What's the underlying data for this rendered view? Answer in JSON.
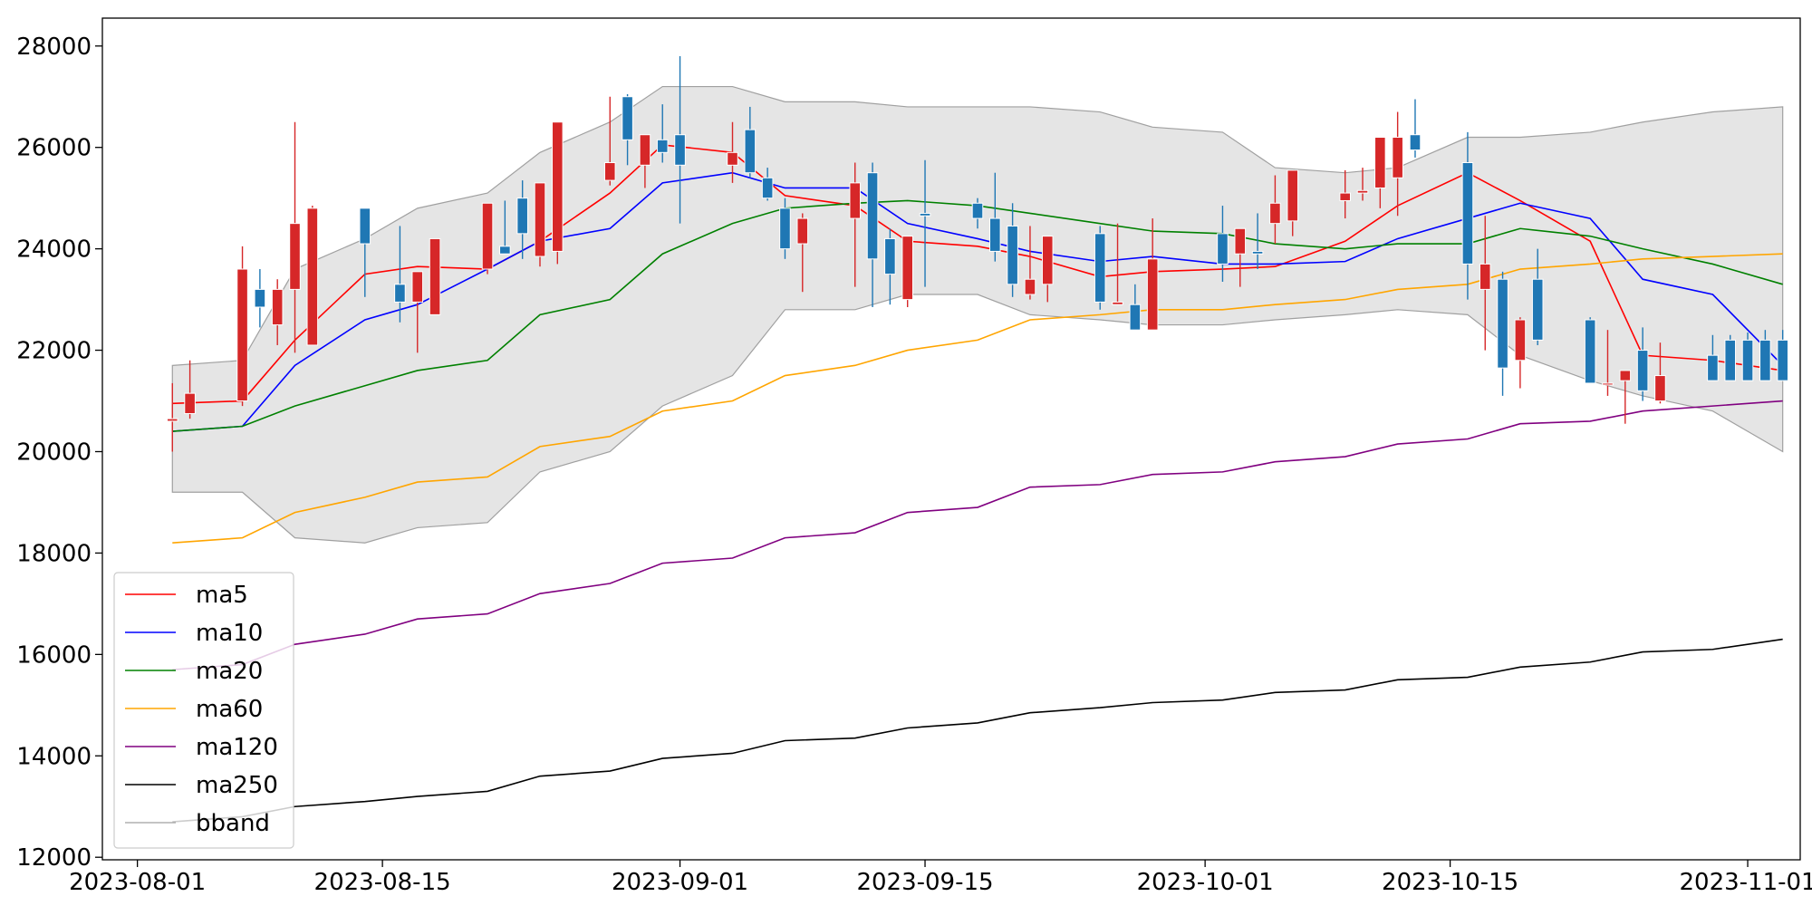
{
  "chart_data": {
    "type": "candlestick",
    "title": "",
    "xlabel": "",
    "ylabel": "",
    "xlim": [
      "2023-07-30",
      "2023-11-04"
    ],
    "ylim": [
      11950,
      28550
    ],
    "grid": false,
    "legend_position": "lower-left",
    "x_ticks": [
      "2023-08-01",
      "2023-08-15",
      "2023-09-01",
      "2023-09-15",
      "2023-10-01",
      "2023-10-15",
      "2023-11-01"
    ],
    "y_ticks": [
      12000,
      14000,
      16000,
      18000,
      20000,
      22000,
      24000,
      26000,
      28000
    ],
    "colors": {
      "up": "#d62728",
      "down": "#1f77b4",
      "band_fill": "#e5e5e5",
      "band_edge": "#a0a0a0"
    },
    "candles": {
      "x": [
        "2023-08-03",
        "2023-08-04",
        "2023-08-07",
        "2023-08-08",
        "2023-08-09",
        "2023-08-10",
        "2023-08-11",
        "2023-08-14",
        "2023-08-16",
        "2023-08-17",
        "2023-08-18",
        "2023-08-21",
        "2023-08-22",
        "2023-08-23",
        "2023-08-24",
        "2023-08-25",
        "2023-08-28",
        "2023-08-29",
        "2023-08-30",
        "2023-08-31",
        "2023-09-01",
        "2023-09-04",
        "2023-09-05",
        "2023-09-06",
        "2023-09-07",
        "2023-09-08",
        "2023-09-11",
        "2023-09-12",
        "2023-09-13",
        "2023-09-14",
        "2023-09-15",
        "2023-09-18",
        "2023-09-19",
        "2023-09-20",
        "2023-09-21",
        "2023-09-22",
        "2023-09-25",
        "2023-09-26",
        "2023-09-27",
        "2023-09-28",
        "2023-10-02",
        "2023-10-03",
        "2023-10-04",
        "2023-10-05",
        "2023-10-06",
        "2023-10-09",
        "2023-10-10",
        "2023-10-11",
        "2023-10-12",
        "2023-10-13",
        "2023-10-16",
        "2023-10-17",
        "2023-10-18",
        "2023-10-19",
        "2023-10-20",
        "2023-10-23",
        "2023-10-24",
        "2023-10-25",
        "2023-10-26",
        "2023-10-27",
        "2023-10-30",
        "2023-10-31",
        "2023-11-01",
        "2023-11-02",
        "2023-11-03"
      ],
      "open": [
        20600,
        20750,
        21000,
        23200,
        22500,
        23200,
        22100,
        24800,
        23300,
        22950,
        22700,
        23600,
        24050,
        25000,
        23850,
        23950,
        25350,
        27000,
        25650,
        26150,
        26250,
        25650,
        26350,
        25400,
        24800,
        24100,
        24600,
        25500,
        24200,
        23000,
        24700,
        24900,
        24600,
        24450,
        23100,
        23300,
        24300,
        22900,
        22900,
        22400,
        24300,
        23900,
        23950,
        24500,
        24550,
        24950,
        25100,
        25200,
        25400,
        26250,
        25700,
        23200,
        23400,
        21800,
        23400,
        22600,
        21350,
        21400,
        22000,
        21000,
        21900,
        22200,
        22200,
        22200,
        22200
      ],
      "high": [
        21350,
        21800,
        24050,
        23600,
        23400,
        26500,
        24850,
        24500,
        24450,
        23100,
        23750,
        24750,
        24950,
        25350,
        24600,
        25750,
        27000,
        27050,
        26250,
        26850,
        27800,
        26500,
        26800,
        25600,
        25000,
        24700,
        25700,
        25700,
        24400,
        24200,
        25750,
        25000,
        25500,
        24900,
        24450,
        23800,
        24450,
        24500,
        23300,
        24600,
        24850,
        24050,
        24700,
        25450,
        25100,
        25550,
        25600,
        25950,
        26700,
        26950,
        26300,
        24650,
        23550,
        22650,
        24000,
        22650,
        22400,
        21600,
        22450,
        22150,
        22300,
        22300,
        22350,
        22400,
        22400
      ],
      "low": [
        20000,
        20650,
        20900,
        22450,
        22100,
        21950,
        23550,
        23050,
        22550,
        21950,
        22850,
        23500,
        23950,
        23800,
        23650,
        23700,
        25250,
        25650,
        25200,
        25700,
        24500,
        25300,
        25400,
        24950,
        23800,
        23150,
        23250,
        22850,
        22900,
        22850,
        23250,
        24400,
        23750,
        23050,
        23000,
        22950,
        22800,
        22900,
        22700,
        22400,
        23350,
        23250,
        23600,
        24100,
        24250,
        24600,
        24950,
        24800,
        24650,
        25800,
        23000,
        22000,
        21100,
        21250,
        22100,
        21400,
        21100,
        20550,
        21000,
        20950,
        21500,
        21500,
        21500,
        21500,
        21500
      ],
      "close": [
        20650,
        21150,
        23600,
        22850,
        23200,
        24500,
        24800,
        24100,
        22950,
        23550,
        24200,
        24900,
        23900,
        24300,
        25300,
        26500,
        25700,
        26150,
        26250,
        25900,
        25650,
        25900,
        25500,
        25000,
        24000,
        24600,
        25300,
        23800,
        23500,
        24250,
        24650,
        24600,
        23950,
        23300,
        23400,
        24250,
        22950,
        22950,
        22400,
        23800,
        23700,
        24400,
        23900,
        24900,
        25550,
        25100,
        25150,
        26200,
        26200,
        25950,
        23700,
        23700,
        21650,
        22600,
        22200,
        21350,
        21350,
        21600,
        21200,
        21500,
        21400,
        21400,
        21400,
        21400,
        21400
      ]
    },
    "bband": {
      "x": [
        "2023-08-03",
        "2023-08-07",
        "2023-08-10",
        "2023-08-14",
        "2023-08-17",
        "2023-08-21",
        "2023-08-24",
        "2023-08-28",
        "2023-08-31",
        "2023-09-04",
        "2023-09-07",
        "2023-09-11",
        "2023-09-14",
        "2023-09-18",
        "2023-09-21",
        "2023-09-25",
        "2023-09-28",
        "2023-10-02",
        "2023-10-05",
        "2023-10-09",
        "2023-10-12",
        "2023-10-16",
        "2023-10-19",
        "2023-10-23",
        "2023-10-26",
        "2023-10-30",
        "2023-11-03"
      ],
      "upper": [
        21700,
        21800,
        23600,
        24200,
        24800,
        25100,
        25900,
        26500,
        27200,
        27200,
        26900,
        26900,
        26800,
        26800,
        26800,
        26700,
        26400,
        26300,
        25600,
        25500,
        25600,
        26200,
        26200,
        26300,
        26500,
        26700,
        26800
      ],
      "lower": [
        19200,
        19200,
        18300,
        18200,
        18500,
        18600,
        19600,
        20000,
        20900,
        21500,
        22800,
        22800,
        23100,
        23100,
        22700,
        22600,
        22500,
        22500,
        22600,
        22700,
        22800,
        22700,
        21900,
        21400,
        21100,
        20800,
        20000
      ]
    },
    "series": [
      {
        "name": "ma5",
        "color": "#ff0000",
        "x": [
          "2023-08-03",
          "2023-08-07",
          "2023-08-10",
          "2023-08-14",
          "2023-08-17",
          "2023-08-21",
          "2023-08-24",
          "2023-08-28",
          "2023-08-31",
          "2023-09-04",
          "2023-09-07",
          "2023-09-11",
          "2023-09-14",
          "2023-09-18",
          "2023-09-21",
          "2023-09-25",
          "2023-09-28",
          "2023-10-02",
          "2023-10-05",
          "2023-10-09",
          "2023-10-12",
          "2023-10-16",
          "2023-10-19",
          "2023-10-23",
          "2023-10-26",
          "2023-10-30",
          "2023-11-03"
        ],
        "y": [
          20950,
          21000,
          22200,
          23500,
          23650,
          23600,
          24150,
          25100,
          26050,
          25900,
          25050,
          24850,
          24150,
          24050,
          23850,
          23450,
          23550,
          23600,
          23650,
          24150,
          24850,
          25500,
          24950,
          24150,
          21900,
          21800,
          21600
        ]
      },
      {
        "name": "ma10",
        "color": "#0000ff",
        "x": [
          "2023-08-03",
          "2023-08-07",
          "2023-08-10",
          "2023-08-14",
          "2023-08-17",
          "2023-08-21",
          "2023-08-24",
          "2023-08-28",
          "2023-08-31",
          "2023-09-04",
          "2023-09-07",
          "2023-09-11",
          "2023-09-14",
          "2023-09-18",
          "2023-09-21",
          "2023-09-25",
          "2023-09-28",
          "2023-10-02",
          "2023-10-05",
          "2023-10-09",
          "2023-10-12",
          "2023-10-16",
          "2023-10-19",
          "2023-10-23",
          "2023-10-26",
          "2023-10-30",
          "2023-11-03"
        ],
        "y": [
          20400,
          20500,
          21700,
          22600,
          22900,
          23600,
          24150,
          24400,
          25300,
          25500,
          25200,
          25200,
          24500,
          24200,
          23950,
          23750,
          23850,
          23700,
          23700,
          23750,
          24200,
          24600,
          24900,
          24600,
          23400,
          23100,
          21700
        ]
      },
      {
        "name": "ma20",
        "color": "#008000",
        "x": [
          "2023-08-03",
          "2023-08-07",
          "2023-08-10",
          "2023-08-14",
          "2023-08-17",
          "2023-08-21",
          "2023-08-24",
          "2023-08-28",
          "2023-08-31",
          "2023-09-04",
          "2023-09-07",
          "2023-09-11",
          "2023-09-14",
          "2023-09-18",
          "2023-09-21",
          "2023-09-25",
          "2023-09-28",
          "2023-10-02",
          "2023-10-05",
          "2023-10-09",
          "2023-10-12",
          "2023-10-16",
          "2023-10-19",
          "2023-10-23",
          "2023-10-26",
          "2023-10-30",
          "2023-11-03"
        ],
        "y": [
          20400,
          20500,
          20900,
          21300,
          21600,
          21800,
          22700,
          23000,
          23900,
          24500,
          24800,
          24900,
          24950,
          24850,
          24700,
          24500,
          24350,
          24300,
          24100,
          24000,
          24100,
          24100,
          24400,
          24250,
          24000,
          23700,
          23300
        ]
      },
      {
        "name": "ma60",
        "color": "#ffa500",
        "x": [
          "2023-08-03",
          "2023-08-07",
          "2023-08-10",
          "2023-08-14",
          "2023-08-17",
          "2023-08-21",
          "2023-08-24",
          "2023-08-28",
          "2023-08-31",
          "2023-09-04",
          "2023-09-07",
          "2023-09-11",
          "2023-09-14",
          "2023-09-18",
          "2023-09-21",
          "2023-09-25",
          "2023-09-28",
          "2023-10-02",
          "2023-10-05",
          "2023-10-09",
          "2023-10-12",
          "2023-10-16",
          "2023-10-19",
          "2023-10-23",
          "2023-10-26",
          "2023-10-30",
          "2023-11-03"
        ],
        "y": [
          18200,
          18300,
          18800,
          19100,
          19400,
          19500,
          20100,
          20300,
          20800,
          21000,
          21500,
          21700,
          22000,
          22200,
          22600,
          22700,
          22800,
          22800,
          22900,
          23000,
          23200,
          23300,
          23600,
          23700,
          23800,
          23850,
          23900
        ]
      },
      {
        "name": "ma120",
        "color": "#800080",
        "x": [
          "2023-08-03",
          "2023-08-07",
          "2023-08-10",
          "2023-08-14",
          "2023-08-17",
          "2023-08-21",
          "2023-08-24",
          "2023-08-28",
          "2023-08-31",
          "2023-09-04",
          "2023-09-07",
          "2023-09-11",
          "2023-09-14",
          "2023-09-18",
          "2023-09-21",
          "2023-09-25",
          "2023-09-28",
          "2023-10-02",
          "2023-10-05",
          "2023-10-09",
          "2023-10-12",
          "2023-10-16",
          "2023-10-19",
          "2023-10-23",
          "2023-10-26",
          "2023-10-30",
          "2023-11-03"
        ],
        "y": [
          15700,
          15800,
          16200,
          16400,
          16700,
          16800,
          17200,
          17400,
          17800,
          17900,
          18300,
          18400,
          18800,
          18900,
          19300,
          19350,
          19550,
          19600,
          19800,
          19900,
          20150,
          20250,
          20550,
          20600,
          20800,
          20900,
          21000
        ]
      },
      {
        "name": "ma250",
        "color": "#000000",
        "x": [
          "2023-08-03",
          "2023-08-07",
          "2023-08-10",
          "2023-08-14",
          "2023-08-17",
          "2023-08-21",
          "2023-08-24",
          "2023-08-28",
          "2023-08-31",
          "2023-09-04",
          "2023-09-07",
          "2023-09-11",
          "2023-09-14",
          "2023-09-18",
          "2023-09-21",
          "2023-09-25",
          "2023-09-28",
          "2023-10-02",
          "2023-10-05",
          "2023-10-09",
          "2023-10-12",
          "2023-10-16",
          "2023-10-19",
          "2023-10-23",
          "2023-10-26",
          "2023-10-30",
          "2023-11-03"
        ],
        "y": [
          12700,
          12800,
          13000,
          13100,
          13200,
          13300,
          13600,
          13700,
          13950,
          14050,
          14300,
          14350,
          14550,
          14650,
          14850,
          14950,
          15050,
          15100,
          15250,
          15300,
          15500,
          15550,
          15750,
          15850,
          16050,
          16100,
          16300
        ]
      }
    ],
    "legend": [
      "ma5",
      "ma10",
      "ma20",
      "ma60",
      "ma120",
      "ma250",
      "bband"
    ]
  }
}
